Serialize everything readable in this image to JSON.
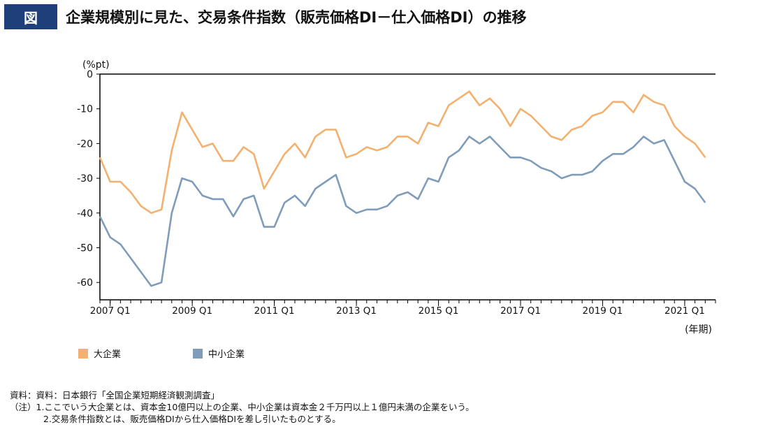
{
  "header": {
    "badge": "図",
    "title": "企業規模別に見た、交易条件指数（販売価格DI－仕入価格DI）の推移"
  },
  "chart_data": {
    "type": "line",
    "ylabel": "(%pt)",
    "xlabel": "(年期)",
    "ylim": [
      -65,
      0
    ],
    "yticks": [
      0,
      -10,
      -20,
      -30,
      -40,
      -50,
      -60
    ],
    "xlim": [
      0,
      60
    ],
    "xticks": [
      {
        "i": 1,
        "label": "2007 Q1"
      },
      {
        "i": 9,
        "label": "2009 Q1"
      },
      {
        "i": 17,
        "label": "2011 Q1"
      },
      {
        "i": 25,
        "label": "2013 Q1"
      },
      {
        "i": 33,
        "label": "2015 Q1"
      },
      {
        "i": 41,
        "label": "2017 Q1"
      },
      {
        "i": 49,
        "label": "2019 Q1"
      },
      {
        "i": 57,
        "label": "2021 Q1"
      }
    ],
    "legend_placement": "bottom-left",
    "grid": false,
    "series": [
      {
        "name": "大企業",
        "color": "#f4b06e",
        "values": [
          -24,
          -31,
          -31,
          -34,
          -38,
          -40,
          -39,
          -22,
          -11,
          -16,
          -21,
          -20,
          -25,
          -25,
          -21,
          -23,
          -33,
          -28,
          -23,
          -20,
          -24,
          -18,
          -16,
          -16,
          -24,
          -23,
          -21,
          -22,
          -21,
          -18,
          -18,
          -20,
          -14,
          -15,
          -9,
          -7,
          -5,
          -9,
          -7,
          -10,
          -15,
          -10,
          -12,
          -15,
          -18,
          -19,
          -16,
          -15,
          -12,
          -11,
          -8,
          -8,
          -11,
          -6,
          -8,
          -9,
          -15,
          -18,
          -20,
          -24
        ]
      },
      {
        "name": "中小企業",
        "color": "#7f9cba",
        "values": [
          -41,
          -47,
          -49,
          -53,
          -57,
          -61,
          -60,
          -40,
          -30,
          -31,
          -35,
          -36,
          -36,
          -41,
          -36,
          -35,
          -44,
          -44,
          -37,
          -35,
          -38,
          -33,
          -31,
          -29,
          -38,
          -40,
          -39,
          -39,
          -38,
          -35,
          -34,
          -36,
          -30,
          -31,
          -24,
          -22,
          -18,
          -20,
          -18,
          -21,
          -24,
          -24,
          -25,
          -27,
          -28,
          -30,
          -29,
          -29,
          -28,
          -25,
          -23,
          -23,
          -21,
          -18,
          -20,
          -19,
          -25,
          -31,
          -33,
          -37
        ]
      }
    ]
  },
  "notes": {
    "source": "資料：資料：日本銀行「全国企業短期経済観測調査」",
    "note1": "（注）1.ここでいう大企業とは、資本金10億円以上の企業、中小企業は資本金２千万円以上１億円未満の企業をいう。",
    "note2": "2.交易条件指数とは、販売価格DIから仕入価格DIを差し引いたものとする。"
  }
}
